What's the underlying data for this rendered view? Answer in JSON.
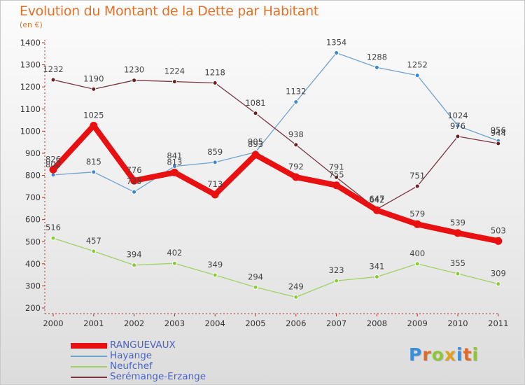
{
  "chart_data": {
    "type": "line",
    "title": "Evolution du Montant de la Dette par Habitant",
    "subtitle": "(en €)",
    "xlabel": "",
    "ylabel": "",
    "categories": [
      "2000",
      "2001",
      "2002",
      "2003",
      "2004",
      "2005",
      "2006",
      "2007",
      "2008",
      "2009",
      "2010",
      "2011"
    ],
    "ylim": [
      200,
      1400
    ],
    "yticks": [
      200,
      300,
      400,
      500,
      600,
      700,
      800,
      900,
      1000,
      1100,
      1200,
      1300,
      1400
    ],
    "grid": false,
    "legend_position": "bottom-left",
    "series": [
      {
        "name": "RANGUEVAUX",
        "color": "#e81010",
        "values": [
          826,
          1025,
          776,
          813,
          713,
          893,
          792,
          755,
          642,
          579,
          539,
          503
        ]
      },
      {
        "name": "Hayange",
        "color": "#6fa3d2",
        "point_color": "#3d86cc",
        "values": [
          802,
          815,
          725,
          841,
          859,
          905,
          1132,
          1354,
          1288,
          1252,
          1024,
          956
        ]
      },
      {
        "name": "Neufchef",
        "color": "#9fd260",
        "point_color": "#8acb3c",
        "values": [
          516,
          457,
          394,
          402,
          349,
          294,
          249,
          323,
          341,
          400,
          355,
          309
        ]
      },
      {
        "name": "Serémange-Erzange",
        "color": "#7b3540",
        "point_color": "#6a2020",
        "values": [
          1232,
          1190,
          1230,
          1224,
          1218,
          1081,
          938,
          791,
          647,
          751,
          976,
          944
        ]
      }
    ]
  },
  "logo": {
    "text": "Proxiti"
  }
}
